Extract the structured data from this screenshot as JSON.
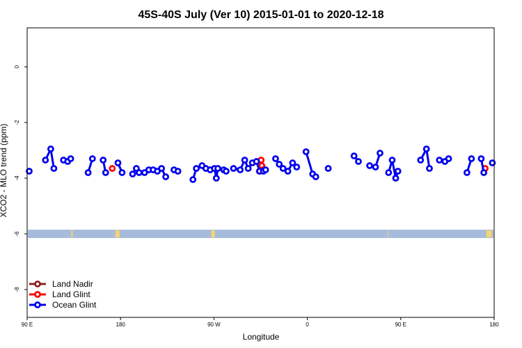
{
  "chart_data": {
    "type": "scatter",
    "title": "45S-40S July (Ver 10)   2015-01-01 to 2020-12-18",
    "xlabel": "Longitude",
    "ylabel": "XCO2 - MLO trend (ppm)",
    "xlim": [
      90,
      450
    ],
    "ylim": [
      -9,
      1.4
    ],
    "x_ticks": [
      {
        "value": 90,
        "label": "90 E"
      },
      {
        "value": 162,
        "label": "180"
      },
      {
        "value": 234,
        "label": "90 W"
      },
      {
        "value": 306,
        "label": "0"
      },
      {
        "value": 378,
        "label": "90 E"
      },
      {
        "value": 450,
        "label": "180"
      }
    ],
    "y_ticks": [
      0,
      -2,
      -4,
      -6,
      -8
    ],
    "grid": false,
    "legend_position": "bottom-left",
    "land_strip": {
      "y": -6,
      "color_ocean": "#a7bcdc",
      "color_land": "#f7d56e"
    },
    "series": [
      {
        "name": "Land Nadir",
        "color": "#8b2323",
        "segments": []
      },
      {
        "name": "Land Glint",
        "color": "#ff0000",
        "segments": [
          [
            [
              155.6,
              -3.65
            ]
          ],
          [
            [
              269.0,
              -3.75
            ],
            [
              270.4,
              -3.35
            ],
            [
              270.9,
              -3.55
            ],
            [
              271.6,
              -3.7
            ]
          ],
          [
            [
              443.1,
              -3.65
            ]
          ]
        ]
      },
      {
        "name": "Ocean Glint",
        "color": "#0000ee",
        "segments": [
          [
            [
              91.6,
              -3.75
            ]
          ],
          [
            [
              104.1,
              -3.35
            ],
            [
              108.2,
              -2.95
            ],
            [
              110.6,
              -3.65
            ]
          ],
          [
            [
              118.0,
              -3.35
            ],
            [
              121.2,
              -3.4
            ],
            [
              123.6,
              -3.3
            ]
          ],
          [
            [
              137.0,
              -3.8
            ],
            [
              140.3,
              -3.3
            ]
          ],
          [
            [
              148.6,
              -3.35
            ],
            [
              150.5,
              -3.8
            ]
          ],
          [
            [
              160.0,
              -3.45
            ],
            [
              163.2,
              -3.8
            ]
          ],
          [
            [
              171.3,
              -3.85
            ],
            [
              174.2,
              -3.65
            ],
            [
              176.3,
              -3.8
            ]
          ],
          [
            [
              180.5,
              -3.8
            ],
            [
              183.8,
              -3.7
            ],
            [
              187.1,
              -3.7
            ],
            [
              190.4,
              -3.75
            ],
            [
              193.6,
              -3.65
            ],
            [
              196.8,
              -3.95
            ]
          ],
          [
            [
              203.2,
              -3.7
            ],
            [
              206.2,
              -3.75
            ]
          ],
          [
            [
              217.8,
              -4.05
            ],
            [
              220.4,
              -3.65
            ],
            [
              224.8,
              -3.55
            ],
            [
              227.8,
              -3.65
            ],
            [
              231.1,
              -3.7
            ],
            [
              234.4,
              -3.65
            ],
            [
              235.8,
              -4.0
            ],
            [
              237.0,
              -3.65
            ]
          ],
          [
            [
              241.5,
              -3.7
            ],
            [
              243.4,
              -3.75
            ]
          ],
          [
            [
              249.1,
              -3.65
            ],
            [
              254.2,
              -3.7
            ],
            [
              257.7,
              -3.35
            ],
            [
              260.4,
              -3.65
            ],
            [
              263.6,
              -3.45
            ],
            [
              266.8,
              -3.4
            ],
            [
              269.2,
              -3.75
            ],
            [
              272.1,
              -3.75
            ],
            [
              273.8,
              -3.7
            ]
          ],
          [
            [
              281.5,
              -3.3
            ],
            [
              284.3,
              -3.5
            ],
            [
              287.3,
              -3.65
            ],
            [
              291.0,
              -3.75
            ],
            [
              294.6,
              -3.45
            ],
            [
              297.8,
              -3.6
            ]
          ],
          [
            [
              305.0,
              -3.05
            ],
            [
              310.1,
              -3.85
            ],
            [
              312.5,
              -3.95
            ]
          ],
          [
            [
              322.1,
              -3.65
            ]
          ],
          [
            [
              342.0,
              -3.2
            ],
            [
              345.4,
              -3.4
            ]
          ],
          [
            [
              354.0,
              -3.55
            ],
            [
              358.5,
              -3.6
            ],
            [
              362.0,
              -3.1
            ]
          ],
          [
            [
              368.6,
              -3.8
            ],
            [
              371.4,
              -3.35
            ],
            [
              374.1,
              -4.0
            ],
            [
              375.8,
              -3.75
            ]
          ],
          [
            [
              393.3,
              -3.35
            ],
            [
              397.8,
              -2.95
            ],
            [
              400.1,
              -3.65
            ]
          ],
          [
            [
              407.8,
              -3.35
            ],
            [
              412.0,
              -3.4
            ],
            [
              414.9,
              -3.3
            ]
          ],
          [
            [
              429.0,
              -3.8
            ],
            [
              432.5,
              -3.3
            ]
          ],
          [
            [
              440.0,
              -3.3
            ],
            [
              442.0,
              -3.8
            ]
          ],
          [
            [
              448.6,
              -3.45
            ]
          ]
        ]
      }
    ]
  }
}
